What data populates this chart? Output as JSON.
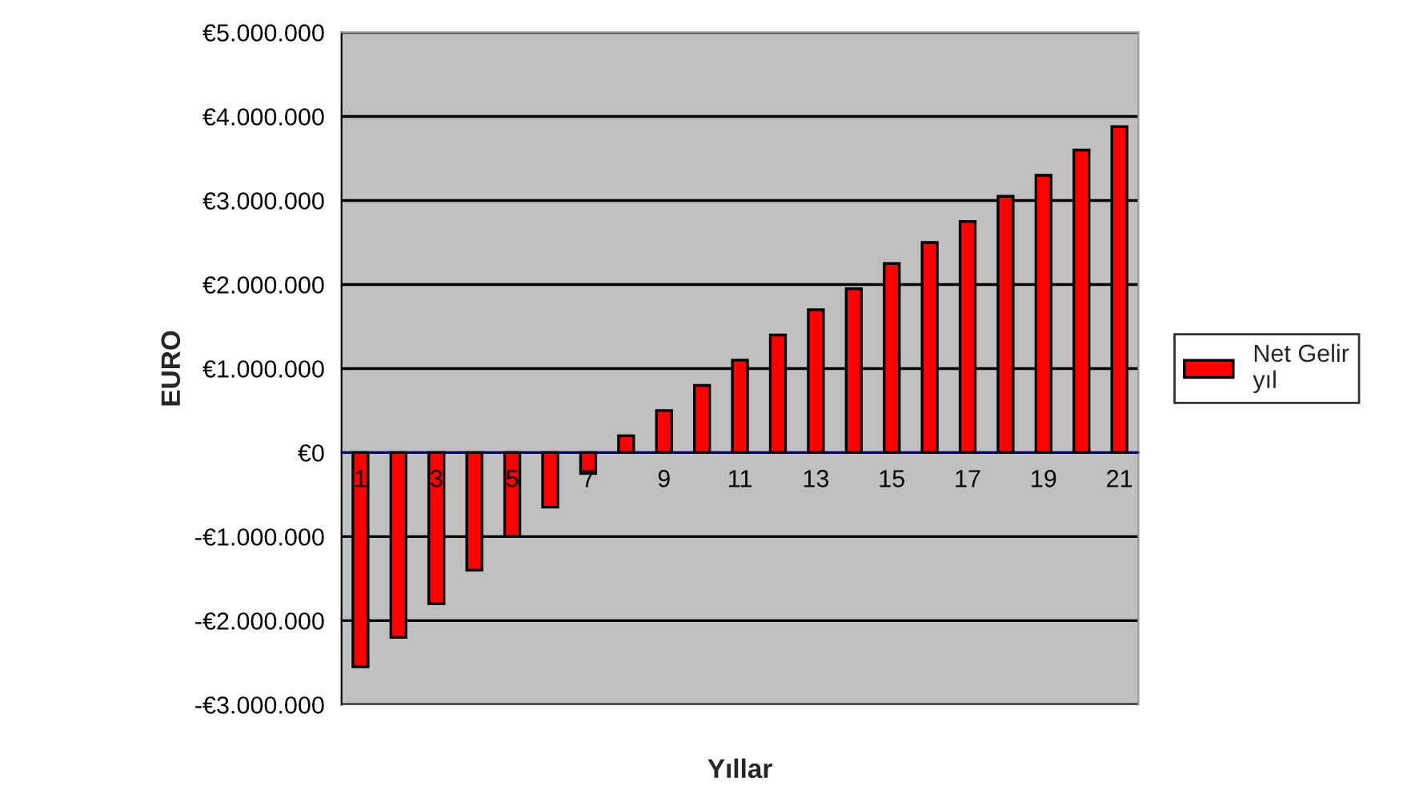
{
  "chart_data": {
    "type": "bar",
    "xlabel": "Yıllar",
    "ylabel": "EURO",
    "categories": [
      "1",
      null,
      "3",
      null,
      "5",
      null,
      "7",
      null,
      "9",
      null,
      "11",
      null,
      "13",
      null,
      "15",
      null,
      "17",
      null,
      "19",
      null,
      "21"
    ],
    "series": [
      {
        "name": "Net Gelir\nyıl",
        "color": "#ff0000",
        "values": [
          -2550000,
          -2200000,
          -1800000,
          -1400000,
          -1000000,
          -650000,
          -250000,
          200000,
          500000,
          800000,
          1100000,
          1400000,
          1700000,
          1950000,
          2250000,
          2500000,
          2750000,
          3050000,
          3300000,
          3600000,
          3880000
        ]
      }
    ],
    "ylim": [
      -3000000,
      5000000
    ],
    "yticks": [
      {
        "value": -3000000,
        "label": "-€3.000.000"
      },
      {
        "value": -2000000,
        "label": "-€2.000.000"
      },
      {
        "value": -1000000,
        "label": "-€1.000.000"
      },
      {
        "value": 0,
        "label": "€0"
      },
      {
        "value": 1000000,
        "label": "€1.000.000"
      },
      {
        "value": 2000000,
        "label": "€2.000.000"
      },
      {
        "value": 3000000,
        "label": "€3.000.000"
      },
      {
        "value": 4000000,
        "label": "€4.000.000"
      },
      {
        "value": 5000000,
        "label": "€5.000.000"
      }
    ],
    "grid": "y",
    "legend": "right"
  }
}
